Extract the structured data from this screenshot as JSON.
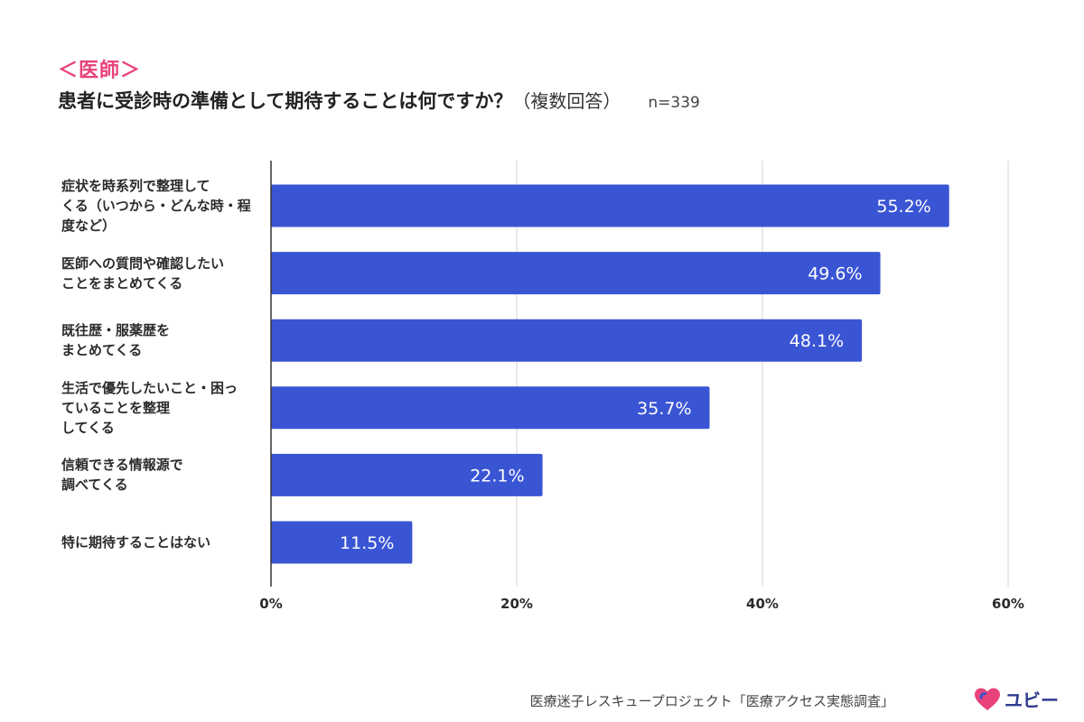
{
  "header": {
    "tag": "＜医師＞",
    "title": "患者に受診時の準備として期待することは何ですか？",
    "title_note": "（複数回答）",
    "sample": "n=339"
  },
  "colors": {
    "bar": "#3a55d4",
    "accent": "#e8437a",
    "brand": "#2f3a8f"
  },
  "chart_data": {
    "type": "bar",
    "orientation": "horizontal",
    "categories": [
      [
        "症状を時系列で整理して",
        "くる（いつから・どんな時・程",
        "度など）"
      ],
      [
        "医師への質問や確認したい",
        "ことをまとめてくる"
      ],
      [
        "既往歴・服薬歴を",
        "まとめてくる"
      ],
      [
        "生活で優先したいこと・困っ",
        "ていることを整理",
        "してくる"
      ],
      [
        "信頼できる情報源で",
        "調べてくる"
      ],
      [
        "特に期待することはない"
      ]
    ],
    "values": [
      55.2,
      49.6,
      48.1,
      35.7,
      22.1,
      11.5
    ],
    "value_labels": [
      "55.2%",
      "49.6%",
      "48.1%",
      "35.7%",
      "22.1%",
      "11.5%"
    ],
    "xlim": [
      0,
      60
    ],
    "ticks": [
      0,
      20,
      40,
      60
    ],
    "tick_labels": [
      "0%",
      "20%",
      "40%",
      "60%"
    ],
    "grid": true,
    "xlabel": "",
    "ylabel": ""
  },
  "footer": {
    "source": "医療迷子レスキュープロジェクト「医療アクセス実態調査」",
    "brand": "ユビー",
    "brand_icon": "heart-logo-icon"
  }
}
